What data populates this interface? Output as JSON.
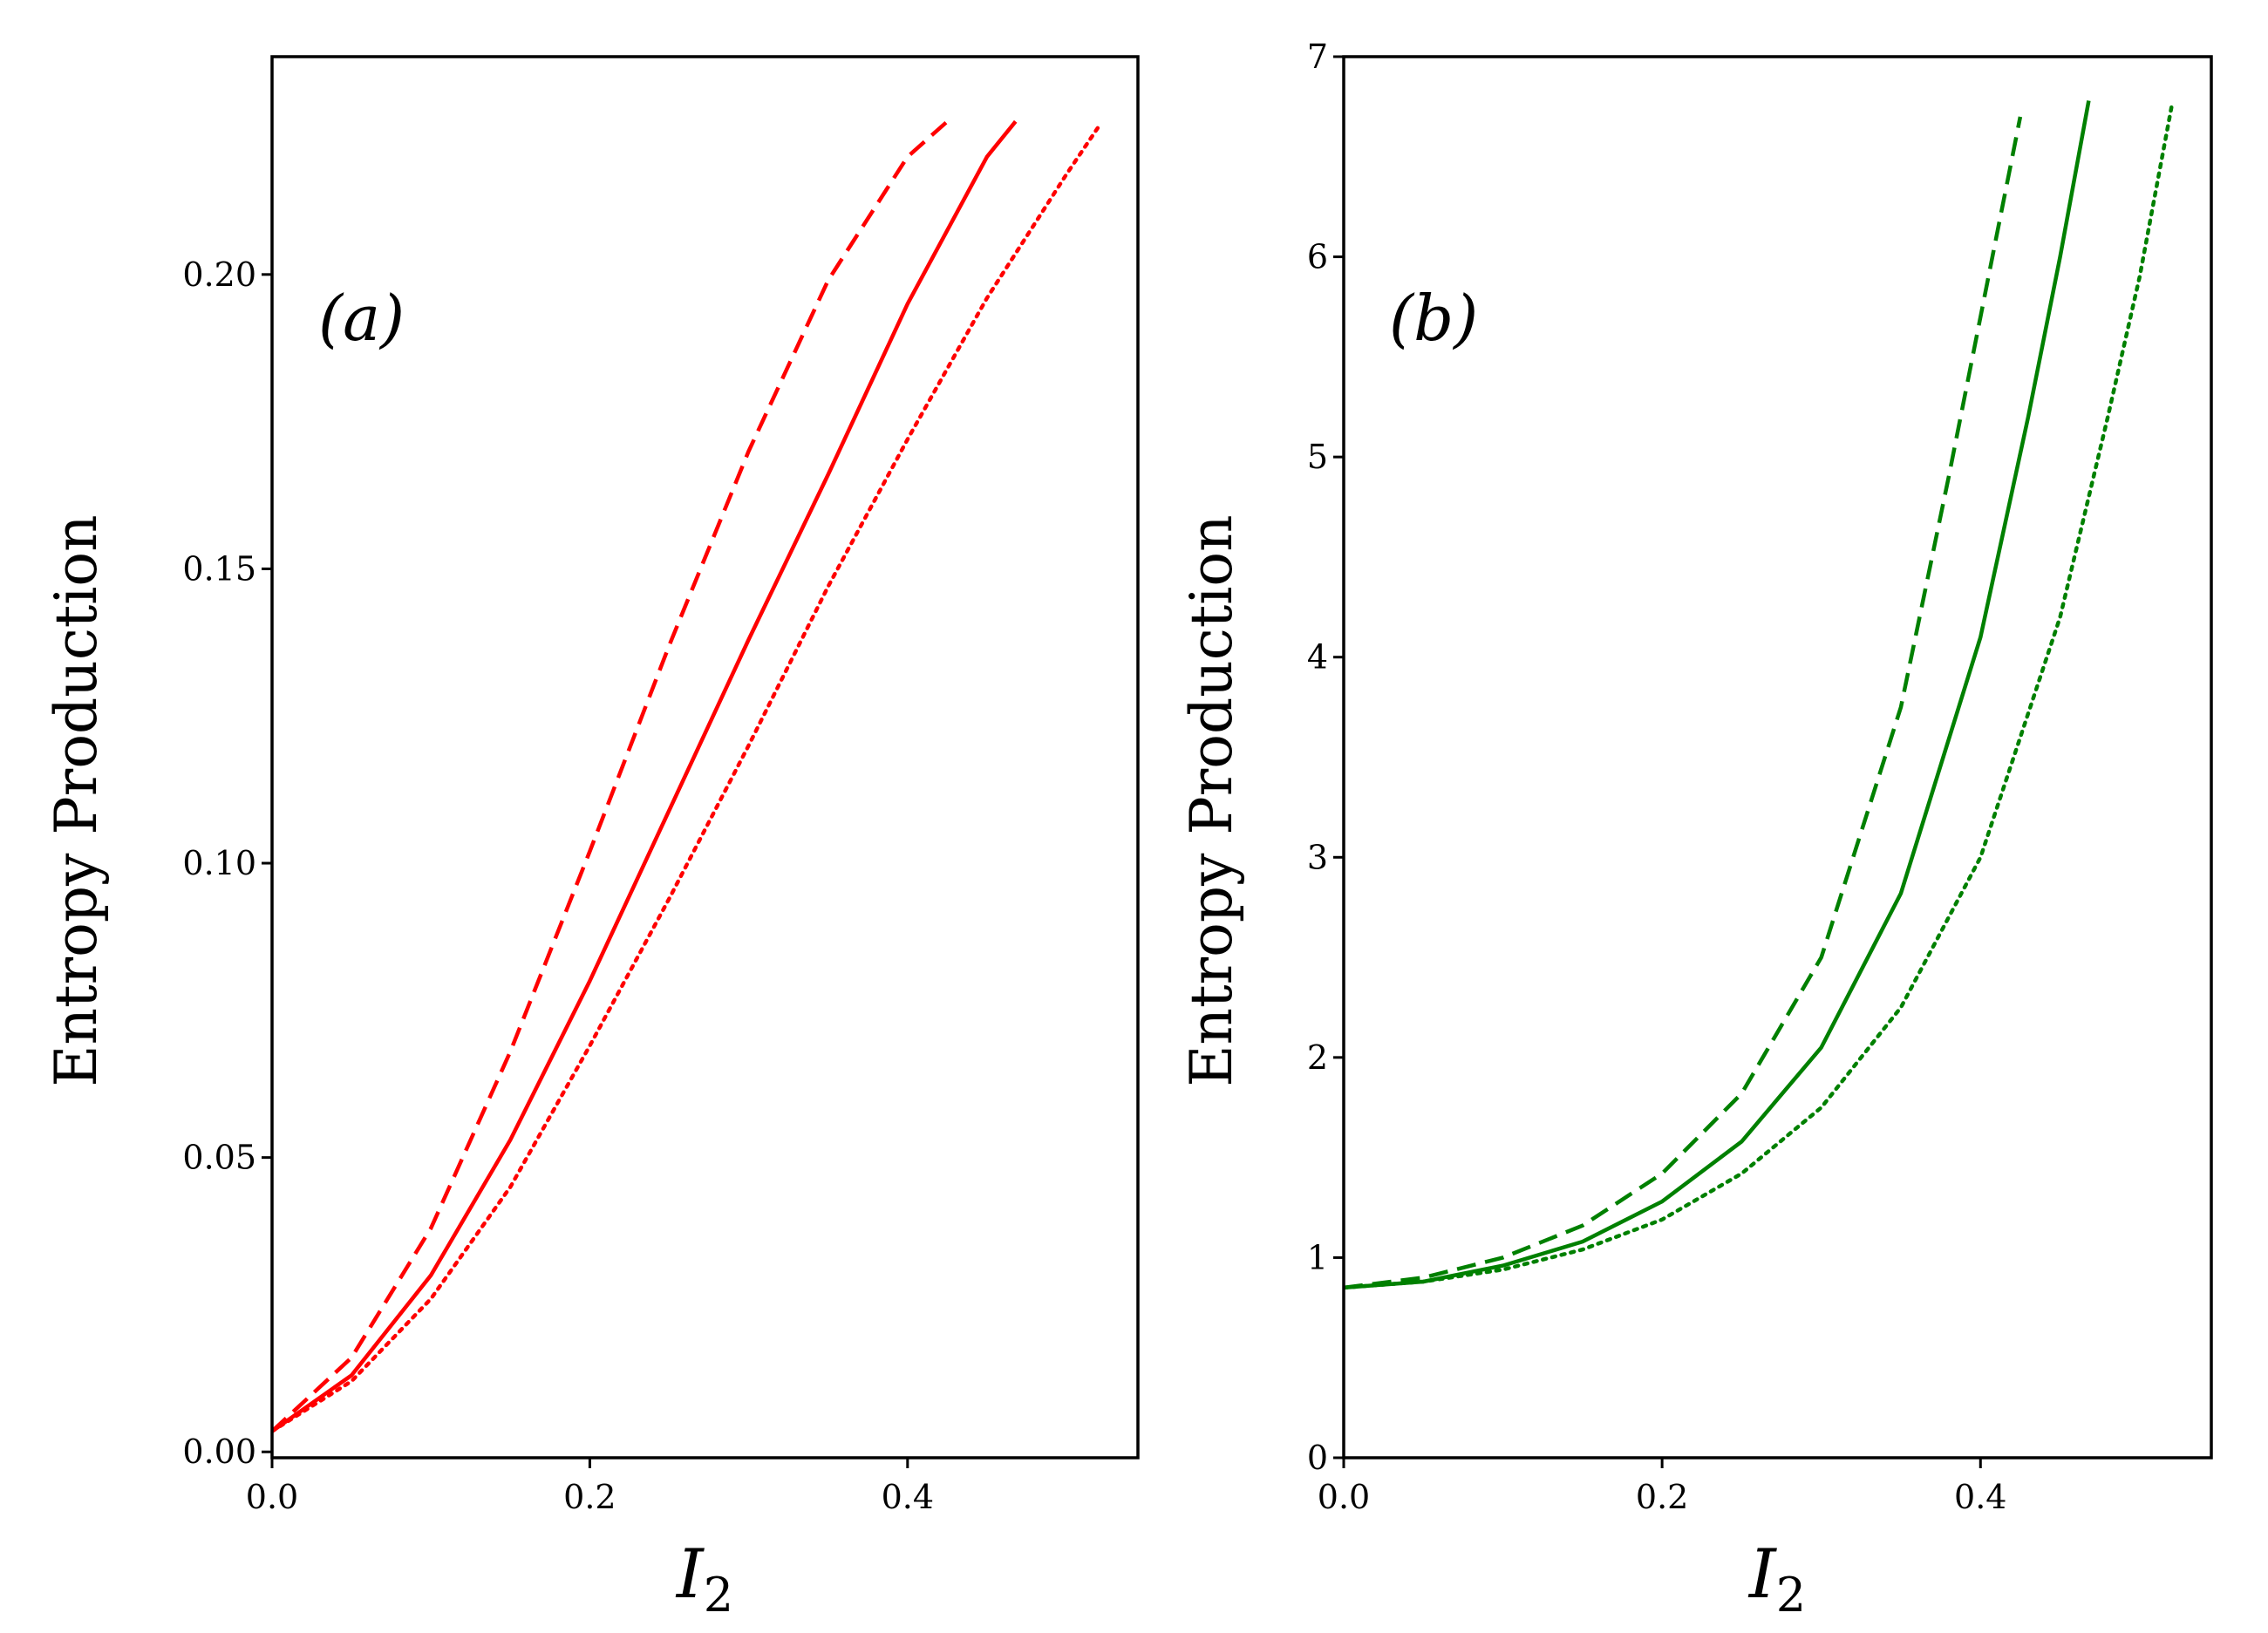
{
  "chart_data": [
    {
      "type": "line",
      "panel_label": "(a)",
      "xlabel": "I",
      "xlabel_sub": "2",
      "ylabel": "Entropy Production",
      "xlim": [
        0.0,
        0.545
      ],
      "ylim": [
        -0.001,
        0.237
      ],
      "xticks": [
        0.0,
        0.2,
        0.4
      ],
      "xtick_labels": [
        "0.0",
        "0.2",
        "0.4"
      ],
      "yticks": [
        0.0,
        0.05,
        0.1,
        0.15,
        0.2
      ],
      "ytick_labels": [
        "0.00",
        "0.05",
        "0.10",
        "0.15",
        "0.20"
      ],
      "color": "#ff0000",
      "series": [
        {
          "name": "dashed",
          "style": "dashed",
          "x": [
            0.0,
            0.05,
            0.1,
            0.15,
            0.2,
            0.25,
            0.3,
            0.35,
            0.4,
            0.425
          ],
          "y": [
            0.0035,
            0.016,
            0.038,
            0.068,
            0.102,
            0.137,
            0.17,
            0.199,
            0.22,
            0.226
          ]
        },
        {
          "name": "solid",
          "style": "solid",
          "x": [
            0.0,
            0.05,
            0.1,
            0.15,
            0.2,
            0.25,
            0.3,
            0.35,
            0.4,
            0.45,
            0.468
          ],
          "y": [
            0.0035,
            0.013,
            0.03,
            0.053,
            0.08,
            0.109,
            0.138,
            0.166,
            0.195,
            0.22,
            0.226
          ]
        },
        {
          "name": "dotted",
          "style": "dotted",
          "x": [
            0.0,
            0.05,
            0.1,
            0.15,
            0.2,
            0.25,
            0.3,
            0.35,
            0.4,
            0.45,
            0.5,
            0.52
          ],
          "y": [
            0.0035,
            0.012,
            0.026,
            0.045,
            0.069,
            0.094,
            0.12,
            0.147,
            0.172,
            0.196,
            0.217,
            0.225
          ]
        }
      ]
    },
    {
      "type": "line",
      "panel_label": "(b)",
      "xlabel": "I",
      "xlabel_sub": "2",
      "ylabel": "Entropy Production",
      "xlim": [
        0.0,
        0.545
      ],
      "ylim": [
        0,
        7
      ],
      "xticks": [
        0.0,
        0.2,
        0.4
      ],
      "xtick_labels": [
        "0.0",
        "0.2",
        "0.4"
      ],
      "yticks": [
        0,
        1,
        2,
        3,
        4,
        5,
        6,
        7
      ],
      "ytick_labels": [
        "0",
        "1",
        "2",
        "3",
        "4",
        "5",
        "6",
        "7"
      ],
      "color": "#008000",
      "series": [
        {
          "name": "dashed",
          "style": "dashed",
          "x": [
            0.0,
            0.05,
            0.1,
            0.15,
            0.2,
            0.25,
            0.3,
            0.35,
            0.38,
            0.4,
            0.41,
            0.42,
            0.425
          ],
          "y": [
            0.85,
            0.9,
            1.0,
            1.16,
            1.42,
            1.82,
            2.5,
            3.75,
            4.9,
            5.7,
            6.1,
            6.5,
            6.7
          ]
        },
        {
          "name": "solid",
          "style": "solid",
          "x": [
            0.0,
            0.05,
            0.1,
            0.15,
            0.2,
            0.25,
            0.3,
            0.35,
            0.4,
            0.43,
            0.45,
            0.468
          ],
          "y": [
            0.85,
            0.88,
            0.96,
            1.08,
            1.28,
            1.58,
            2.05,
            2.82,
            4.1,
            5.2,
            6.0,
            6.78
          ]
        },
        {
          "name": "dotted",
          "style": "dotted",
          "x": [
            0.0,
            0.05,
            0.1,
            0.15,
            0.2,
            0.25,
            0.3,
            0.35,
            0.4,
            0.45,
            0.48,
            0.5,
            0.52
          ],
          "y": [
            0.85,
            0.88,
            0.94,
            1.04,
            1.19,
            1.42,
            1.75,
            2.25,
            3.0,
            4.2,
            5.2,
            5.9,
            6.75
          ]
        }
      ]
    }
  ]
}
